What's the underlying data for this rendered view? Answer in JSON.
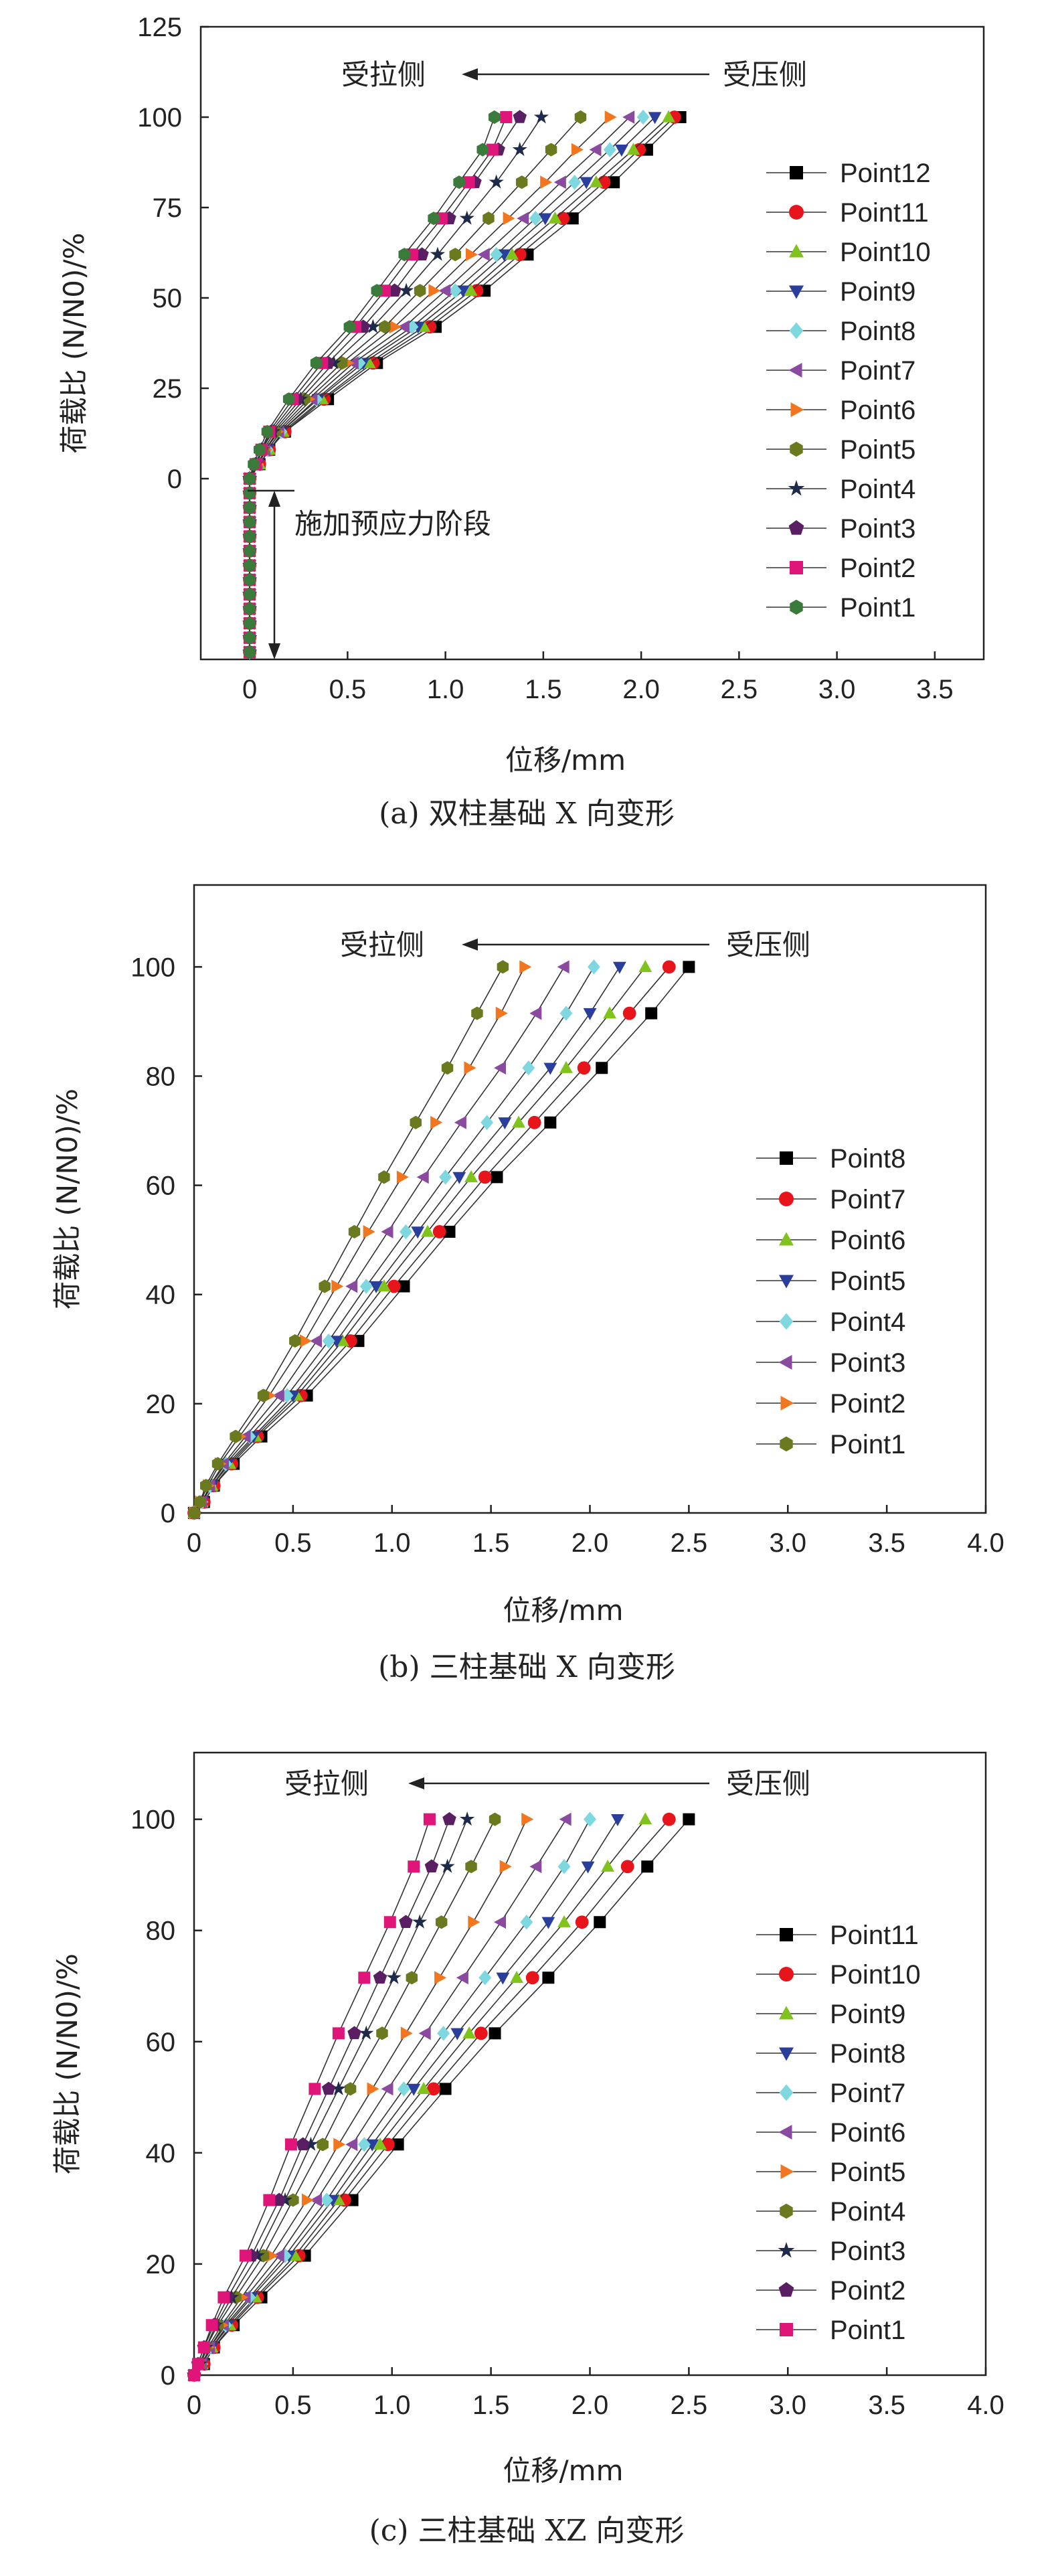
{
  "colors": {
    "Point12": "#000000",
    "Point11": "#e8141c",
    "Point10": "#7fc31c",
    "Point9": "#2a3f9c",
    "Point8": "#7fd8e0",
    "Point7": "#8a4aa0",
    "Point6": "#f2761f",
    "Point5": "#6b7a1e",
    "Point4": "#1e2a4a",
    "Point3": "#5a1f63",
    "Point2": "#e0157a",
    "Point1": "#3a7a3a"
  },
  "chart_data": [
    {
      "type": "scatter",
      "title": "",
      "caption": "(a) 双柱基础 X 向变形",
      "xlabel": "位移/mm",
      "ylabel": "荷载比 (N/N0)/%",
      "xlim": [
        -0.25,
        3.75
      ],
      "ylim": [
        -50,
        125
      ],
      "xticks": [
        "0",
        "0.5",
        "1.0",
        "1.5",
        "2.0",
        "2.5",
        "3.0",
        "3.5"
      ],
      "yticks": [
        "0",
        "25",
        "50",
        "75",
        "100",
        "125"
      ],
      "legend_position": "right",
      "annotations": {
        "tension_side": "受拉侧",
        "compression_side": "受压侧",
        "prestress_stage": "施加预应力阶段"
      },
      "prestress_y": [
        -48,
        -44,
        -40,
        -36,
        -32,
        -28,
        -24,
        -20,
        -16,
        -12,
        -8,
        -4,
        0
      ],
      "y": [
        0,
        4,
        8,
        13,
        22,
        32,
        42,
        52,
        62,
        72,
        82,
        91,
        100
      ],
      "series": [
        {
          "name": "Point12",
          "marker": "square",
          "x": [
            0,
            0.05,
            0.1,
            0.18,
            0.4,
            0.65,
            0.95,
            1.2,
            1.42,
            1.65,
            1.86,
            2.03,
            2.2
          ]
        },
        {
          "name": "Point11",
          "marker": "circle",
          "x": [
            0,
            0.05,
            0.1,
            0.18,
            0.38,
            0.63,
            0.92,
            1.16,
            1.38,
            1.6,
            1.81,
            1.99,
            2.17
          ]
        },
        {
          "name": "Point10",
          "marker": "triangle-up",
          "x": [
            0,
            0.05,
            0.1,
            0.17,
            0.37,
            0.61,
            0.89,
            1.13,
            1.34,
            1.56,
            1.77,
            1.96,
            2.14
          ]
        },
        {
          "name": "Point9",
          "marker": "triangle-down",
          "x": [
            0,
            0.04,
            0.09,
            0.16,
            0.35,
            0.58,
            0.86,
            1.09,
            1.3,
            1.51,
            1.72,
            1.9,
            2.07
          ]
        },
        {
          "name": "Point8",
          "marker": "diamond",
          "x": [
            0,
            0.04,
            0.09,
            0.16,
            0.34,
            0.56,
            0.83,
            1.05,
            1.26,
            1.46,
            1.66,
            1.84,
            2.01
          ]
        },
        {
          "name": "Point7",
          "marker": "triangle-left",
          "x": [
            0,
            0.04,
            0.08,
            0.15,
            0.32,
            0.53,
            0.79,
            1.0,
            1.2,
            1.4,
            1.59,
            1.77,
            1.94
          ]
        },
        {
          "name": "Point6",
          "marker": "triangle-right",
          "x": [
            0,
            0.04,
            0.08,
            0.14,
            0.3,
            0.5,
            0.74,
            0.94,
            1.13,
            1.32,
            1.51,
            1.67,
            1.84
          ]
        },
        {
          "name": "Point5",
          "marker": "hexagon",
          "x": [
            0,
            0.03,
            0.07,
            0.13,
            0.28,
            0.47,
            0.69,
            0.87,
            1.05,
            1.22,
            1.39,
            1.54,
            1.69
          ]
        },
        {
          "name": "Point4",
          "marker": "star",
          "x": [
            0,
            0.03,
            0.06,
            0.12,
            0.26,
            0.43,
            0.63,
            0.8,
            0.96,
            1.11,
            1.26,
            1.38,
            1.49
          ]
        },
        {
          "name": "Point3",
          "marker": "pentagon",
          "x": [
            0,
            0.03,
            0.06,
            0.11,
            0.24,
            0.4,
            0.58,
            0.74,
            0.88,
            1.02,
            1.15,
            1.27,
            1.38
          ]
        },
        {
          "name": "Point2",
          "marker": "square",
          "x": [
            0,
            0.03,
            0.06,
            0.1,
            0.22,
            0.37,
            0.54,
            0.69,
            0.83,
            0.98,
            1.12,
            1.24,
            1.31
          ]
        },
        {
          "name": "Point1",
          "marker": "hexagon",
          "x": [
            0,
            0.02,
            0.05,
            0.09,
            0.2,
            0.34,
            0.51,
            0.65,
            0.79,
            0.94,
            1.07,
            1.19,
            1.25
          ]
        }
      ]
    },
    {
      "type": "scatter",
      "title": "",
      "caption": "(b) 三柱基础 X 向变形",
      "xlabel": "位移/mm",
      "ylabel": "荷载比 (N/N0)/%",
      "xlim": [
        0,
        4.0
      ],
      "ylim": [
        0,
        115
      ],
      "xticks": [
        "0",
        "0.5",
        "1.0",
        "1.5",
        "2.0",
        "2.5",
        "3.0",
        "3.5",
        "4.0"
      ],
      "yticks": [
        "0",
        "20",
        "40",
        "60",
        "80",
        "100"
      ],
      "legend_position": "right",
      "annotations": {
        "tension_side": "受拉侧",
        "compression_side": "受压侧"
      },
      "y": [
        0,
        2,
        5,
        9,
        14,
        21.5,
        31.5,
        41.5,
        51.5,
        61.5,
        71.5,
        81.5,
        91.5,
        100
      ],
      "series": [
        {
          "name": "Point8",
          "marker": "square",
          "color_key": "Point12",
          "x": [
            0,
            0.05,
            0.1,
            0.2,
            0.34,
            0.57,
            0.83,
            1.06,
            1.29,
            1.53,
            1.8,
            2.06,
            2.31,
            2.5
          ]
        },
        {
          "name": "Point7",
          "marker": "circle",
          "color_key": "Point11",
          "x": [
            0,
            0.05,
            0.1,
            0.19,
            0.32,
            0.54,
            0.79,
            1.01,
            1.24,
            1.47,
            1.72,
            1.97,
            2.2,
            2.4
          ]
        },
        {
          "name": "Point6",
          "marker": "triangle-up",
          "color_key": "Point10",
          "x": [
            0,
            0.04,
            0.09,
            0.18,
            0.31,
            0.52,
            0.75,
            0.96,
            1.18,
            1.4,
            1.64,
            1.88,
            2.1,
            2.28
          ]
        },
        {
          "name": "Point5",
          "marker": "triangle-down",
          "color_key": "Point9",
          "x": [
            0,
            0.04,
            0.09,
            0.17,
            0.3,
            0.5,
            0.72,
            0.92,
            1.13,
            1.34,
            1.57,
            1.8,
            2.0,
            2.15
          ]
        },
        {
          "name": "Point4",
          "marker": "diamond",
          "color_key": "Point8",
          "x": [
            0,
            0.04,
            0.08,
            0.16,
            0.28,
            0.47,
            0.68,
            0.87,
            1.07,
            1.27,
            1.48,
            1.69,
            1.88,
            2.02
          ]
        },
        {
          "name": "Point3",
          "marker": "triangle-left",
          "color_key": "Point7",
          "x": [
            0,
            0.04,
            0.08,
            0.15,
            0.26,
            0.43,
            0.62,
            0.8,
            0.98,
            1.16,
            1.35,
            1.55,
            1.73,
            1.87
          ]
        },
        {
          "name": "Point2",
          "marker": "triangle-right",
          "color_key": "Point6",
          "x": [
            0,
            0.03,
            0.07,
            0.13,
            0.23,
            0.38,
            0.56,
            0.72,
            0.88,
            1.05,
            1.22,
            1.39,
            1.55,
            1.67
          ]
        },
        {
          "name": "Point1",
          "marker": "hexagon",
          "color_key": "Point5",
          "x": [
            0,
            0.03,
            0.06,
            0.12,
            0.21,
            0.35,
            0.51,
            0.66,
            0.81,
            0.96,
            1.12,
            1.28,
            1.43,
            1.56
          ]
        }
      ]
    },
    {
      "type": "scatter",
      "title": "",
      "caption": "(c) 三柱基础 XZ 向变形",
      "xlabel": "位移/mm",
      "ylabel": "荷载比 (N/N0)/%",
      "xlim": [
        0,
        4.0
      ],
      "ylim": [
        0,
        112
      ],
      "xticks": [
        "0",
        "0.5",
        "1.0",
        "1.5",
        "2.0",
        "2.5",
        "3.0",
        "3.5",
        "4.0"
      ],
      "yticks": [
        "0",
        "20",
        "40",
        "60",
        "80",
        "100"
      ],
      "legend_position": "right",
      "annotations": {
        "tension_side": "受拉侧",
        "compression_side": "受压侧"
      },
      "y": [
        0,
        2,
        5,
        9,
        14,
        21.5,
        31.5,
        41.5,
        51.5,
        61.5,
        71.5,
        81.5,
        91.5,
        100
      ],
      "series": [
        {
          "name": "Point11",
          "marker": "square",
          "color_key": "Point12",
          "x": [
            0,
            0.05,
            0.1,
            0.2,
            0.34,
            0.56,
            0.8,
            1.03,
            1.27,
            1.52,
            1.79,
            2.05,
            2.29,
            2.5
          ]
        },
        {
          "name": "Point10",
          "marker": "circle",
          "color_key": "Point11",
          "x": [
            0,
            0.05,
            0.1,
            0.19,
            0.32,
            0.53,
            0.76,
            0.98,
            1.21,
            1.45,
            1.71,
            1.96,
            2.19,
            2.4
          ]
        },
        {
          "name": "Point9",
          "marker": "triangle-up",
          "color_key": "Point10",
          "x": [
            0,
            0.04,
            0.09,
            0.18,
            0.31,
            0.51,
            0.73,
            0.94,
            1.16,
            1.39,
            1.63,
            1.87,
            2.09,
            2.28
          ]
        },
        {
          "name": "Point8",
          "marker": "triangle-down",
          "color_key": "Point9",
          "x": [
            0,
            0.04,
            0.09,
            0.17,
            0.29,
            0.48,
            0.7,
            0.9,
            1.11,
            1.33,
            1.56,
            1.79,
            1.99,
            2.14
          ]
        },
        {
          "name": "Point7",
          "marker": "diamond",
          "color_key": "Point8",
          "x": [
            0,
            0.04,
            0.08,
            0.16,
            0.28,
            0.46,
            0.67,
            0.86,
            1.06,
            1.26,
            1.47,
            1.68,
            1.87,
            2.0
          ]
        },
        {
          "name": "Point6",
          "marker": "triangle-left",
          "color_key": "Point7",
          "x": [
            0,
            0.04,
            0.08,
            0.15,
            0.26,
            0.43,
            0.62,
            0.8,
            0.98,
            1.17,
            1.36,
            1.55,
            1.73,
            1.88
          ]
        },
        {
          "name": "Point5",
          "marker": "triangle-right",
          "color_key": "Point6",
          "x": [
            0,
            0.03,
            0.07,
            0.14,
            0.24,
            0.39,
            0.57,
            0.73,
            0.9,
            1.07,
            1.24,
            1.41,
            1.57,
            1.68
          ]
        },
        {
          "name": "Point4",
          "marker": "hexagon",
          "color_key": "Point5",
          "x": [
            0,
            0.03,
            0.06,
            0.12,
            0.21,
            0.35,
            0.5,
            0.65,
            0.79,
            0.95,
            1.1,
            1.25,
            1.4,
            1.52
          ]
        },
        {
          "name": "Point3",
          "marker": "star",
          "color_key": "Point4",
          "x": [
            0,
            0.03,
            0.06,
            0.11,
            0.19,
            0.32,
            0.46,
            0.59,
            0.73,
            0.87,
            1.01,
            1.14,
            1.28,
            1.38
          ]
        },
        {
          "name": "Point2",
          "marker": "pentagon",
          "color_key": "Point3",
          "x": [
            0,
            0.02,
            0.05,
            0.1,
            0.17,
            0.29,
            0.43,
            0.55,
            0.68,
            0.81,
            0.94,
            1.07,
            1.2,
            1.29
          ]
        },
        {
          "name": "Point1",
          "marker": "square",
          "color_key": "Point2",
          "x": [
            0,
            0.02,
            0.05,
            0.09,
            0.15,
            0.26,
            0.38,
            0.49,
            0.61,
            0.73,
            0.86,
            0.99,
            1.11,
            1.19
          ]
        }
      ]
    }
  ]
}
